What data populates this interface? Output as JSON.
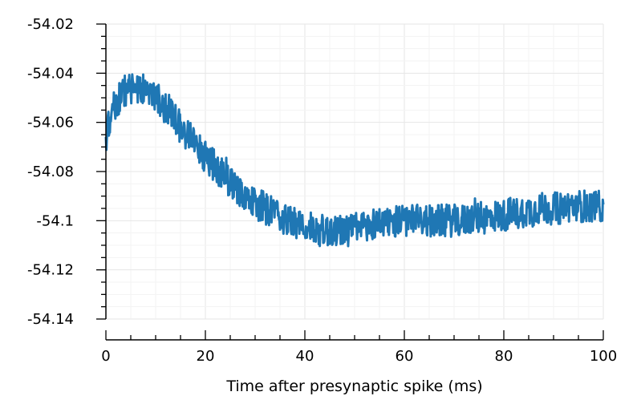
{
  "chart_data": {
    "type": "line",
    "title": "",
    "xlabel": "Time after presynaptic spike (ms)",
    "ylabel": "",
    "xlim": [
      0,
      100
    ],
    "ylim": [
      -54.14,
      -54.02
    ],
    "xticks": [
      0,
      20,
      40,
      60,
      80,
      100
    ],
    "xtick_labels": [
      "0",
      "20",
      "40",
      "60",
      "80",
      "100"
    ],
    "yticks": [
      -54.14,
      -54.12,
      -54.1,
      -54.08,
      -54.06,
      -54.04,
      -54.02
    ],
    "ytick_labels": [
      "-54.14",
      "-54.12",
      "-54.1",
      "-54.08",
      "-54.06",
      "-54.04",
      "-54.02"
    ],
    "grid": true,
    "legend": "none",
    "series": [
      {
        "color": "#1f77b4",
        "x": [
          0,
          1,
          2,
          3,
          4,
          5,
          6,
          7,
          8,
          9,
          10,
          11,
          12,
          13,
          14,
          15,
          16,
          17,
          18,
          19,
          20,
          21,
          22,
          23,
          24,
          25,
          26,
          27,
          28,
          29,
          30,
          31,
          32,
          33,
          34,
          35,
          36,
          37,
          38,
          39,
          40,
          41,
          42,
          43,
          44,
          45,
          46,
          47,
          48,
          49,
          50,
          51,
          52,
          53,
          54,
          55,
          56,
          57,
          58,
          59,
          60,
          61,
          62,
          63,
          64,
          65,
          66,
          67,
          68,
          69,
          70,
          71,
          72,
          73,
          74,
          75,
          76,
          77,
          78,
          79,
          80,
          81,
          82,
          83,
          84,
          85,
          86,
          87,
          88,
          89,
          90,
          91,
          92,
          93,
          94,
          95,
          96,
          97,
          98,
          99,
          100
        ],
        "trend": [
          -54.066,
          -54.058,
          -54.052,
          -54.049,
          -54.047,
          -54.046,
          -54.045,
          -54.046,
          -54.047,
          -54.048,
          -54.05,
          -54.052,
          -54.054,
          -54.056,
          -54.059,
          -54.062,
          -54.064,
          -54.066,
          -54.069,
          -54.071,
          -54.074,
          -54.076,
          -54.078,
          -54.08,
          -54.082,
          -54.084,
          -54.086,
          -54.088,
          -54.09,
          -54.092,
          -54.093,
          -54.094,
          -54.095,
          -54.096,
          -54.097,
          -54.098,
          -54.099,
          -54.1,
          -54.101,
          -54.102,
          -54.102,
          -54.103,
          -54.103,
          -54.104,
          -54.104,
          -54.104,
          -54.104,
          -54.104,
          -54.104,
          -54.104,
          -54.103,
          -54.103,
          -54.102,
          -54.102,
          -54.101,
          -54.101,
          -54.1,
          -54.1,
          -54.1,
          -54.1,
          -54.1,
          -54.1,
          -54.1,
          -54.1,
          -54.1,
          -54.1,
          -54.1,
          -54.1,
          -54.1,
          -54.1,
          -54.1,
          -54.1,
          -54.1,
          -54.099,
          -54.099,
          -54.099,
          -54.099,
          -54.099,
          -54.098,
          -54.098,
          -54.098,
          -54.097,
          -54.097,
          -54.097,
          -54.096,
          -54.096,
          -54.096,
          -54.095,
          -54.095,
          -54.095,
          -54.095,
          -54.095,
          -54.095,
          -54.094,
          -54.094,
          -54.094,
          -54.094,
          -54.094,
          -54.094,
          -54.094,
          -54.094
        ],
        "noise_amplitude": 0.012
      }
    ]
  }
}
